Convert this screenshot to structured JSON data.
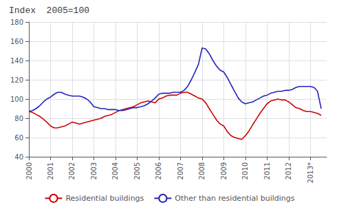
{
  "chart_data": {
    "type": "line",
    "title": "Index  2005=100",
    "xlim": [
      2000,
      2013.75
    ],
    "xticks": [
      2000,
      2001,
      2002,
      2003,
      2004,
      2005,
      2006,
      2007,
      2008,
      2009,
      2010,
      2011,
      2012,
      {
        "value": 2013,
        "label": "2013*"
      }
    ],
    "ylim": [
      40,
      180
    ],
    "yticks": [
      40,
      60,
      80,
      100,
      120,
      140,
      160,
      180
    ],
    "grid": true,
    "legend": "bottom",
    "x": [
      2000.0,
      2000.17,
      2000.33,
      2000.5,
      2000.67,
      2000.83,
      2001.0,
      2001.17,
      2001.33,
      2001.5,
      2001.67,
      2001.83,
      2002.0,
      2002.17,
      2002.33,
      2002.5,
      2002.67,
      2002.83,
      2003.0,
      2003.17,
      2003.33,
      2003.5,
      2003.67,
      2003.83,
      2004.0,
      2004.17,
      2004.33,
      2004.5,
      2004.67,
      2004.83,
      2005.0,
      2005.17,
      2005.33,
      2005.5,
      2005.67,
      2005.83,
      2006.0,
      2006.17,
      2006.33,
      2006.5,
      2006.67,
      2006.83,
      2007.0,
      2007.17,
      2007.33,
      2007.5,
      2007.67,
      2007.83,
      2008.0,
      2008.17,
      2008.33,
      2008.5,
      2008.67,
      2008.83,
      2009.0,
      2009.17,
      2009.33,
      2009.5,
      2009.67,
      2009.83,
      2010.0,
      2010.17,
      2010.33,
      2010.5,
      2010.67,
      2010.83,
      2011.0,
      2011.17,
      2011.33,
      2011.5,
      2011.67,
      2011.83,
      2012.0,
      2012.17,
      2012.33,
      2012.5,
      2012.67,
      2012.83,
      2013.0,
      2013.17,
      2013.33,
      2013.5
    ],
    "series": [
      {
        "name": "Residential buildings",
        "color": "#cc0000",
        "values": [
          87,
          86,
          84,
          82,
          79,
          76,
          72,
          70,
          70,
          71,
          72,
          74,
          76,
          75,
          74,
          75,
          76,
          77,
          78,
          79,
          80,
          82,
          83,
          84,
          86,
          88,
          89,
          90,
          91,
          92,
          94,
          96,
          97,
          98,
          97,
          96,
          100,
          101,
          103,
          104,
          104,
          104,
          106,
          107,
          107,
          105,
          103,
          101,
          100,
          96,
          90,
          84,
          78,
          74,
          72,
          66,
          62,
          60,
          59,
          58,
          62,
          67,
          73,
          79,
          85,
          90,
          95,
          98,
          99,
          100,
          99,
          99,
          97,
          94,
          91,
          90,
          88,
          87,
          87,
          86,
          85,
          83
        ]
      },
      {
        "name": "Other than residential buildings",
        "color": "#2222bb",
        "values": [
          87,
          88,
          90,
          93,
          97,
          100,
          102,
          105,
          107,
          107,
          105,
          104,
          103,
          103,
          103,
          102,
          100,
          97,
          92,
          91,
          90,
          90,
          89,
          89,
          89,
          88,
          88,
          89,
          90,
          91,
          91,
          92,
          93,
          95,
          98,
          101,
          105,
          106,
          106,
          106,
          107,
          107,
          107,
          109,
          113,
          120,
          128,
          136,
          153,
          152,
          147,
          140,
          134,
          130,
          128,
          122,
          115,
          108,
          101,
          97,
          95,
          96,
          97,
          99,
          101,
          103,
          104,
          106,
          107,
          108,
          108,
          109,
          109,
          110,
          112,
          113,
          113,
          113,
          113,
          112,
          108,
          90
        ]
      }
    ]
  }
}
